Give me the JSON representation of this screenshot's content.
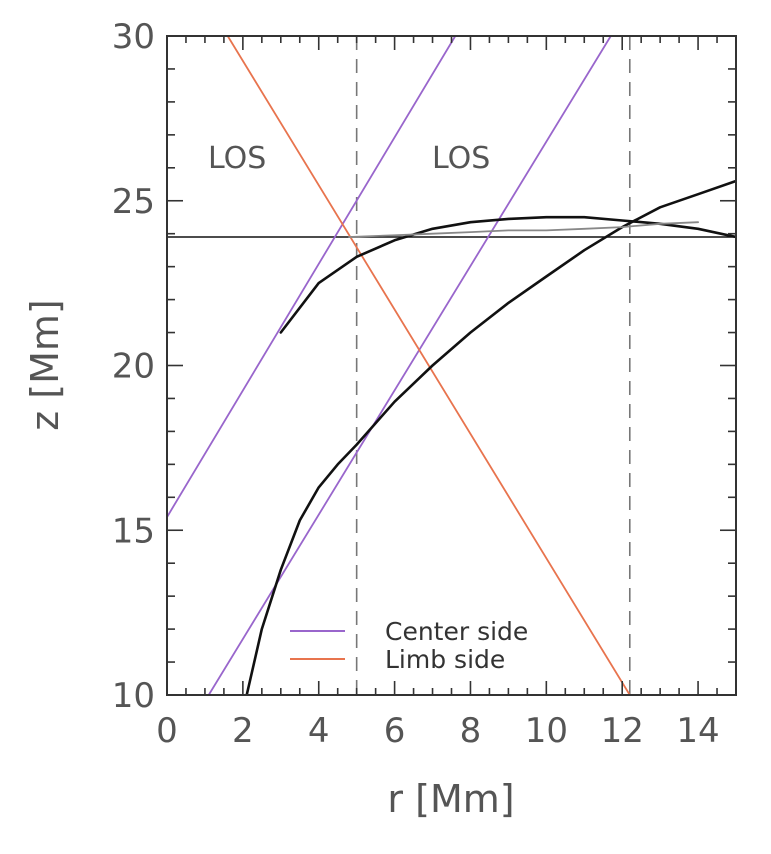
{
  "chart_data": {
    "type": "line",
    "title": "",
    "xlabel": "r [Mm]",
    "ylabel": "z [Mm]",
    "xlim": [
      0,
      15
    ],
    "ylim": [
      10,
      30
    ],
    "x_ticks": [
      0,
      2,
      4,
      6,
      8,
      10,
      12,
      14
    ],
    "x_tick_labels": [
      "0",
      "2",
      "4",
      "6",
      "8",
      "10",
      "12",
      "14"
    ],
    "y_ticks": [
      10,
      15,
      20,
      25,
      30
    ],
    "y_tick_labels": [
      "10",
      "15",
      "20",
      "25",
      "30"
    ],
    "grid": false,
    "legend_position": "bottom-center",
    "colors": {
      "center": "#9966cc",
      "limb": "#e8744e",
      "curve": "#111111",
      "gray_curve": "#888888",
      "dashed": "#777777"
    },
    "legend": [
      {
        "label": "Center side",
        "color": "#9966cc"
      },
      {
        "label": "Limb side",
        "color": "#e8744e"
      }
    ],
    "annotations": [
      {
        "text": "LOS",
        "x": 2.2,
        "y": 25.9,
        "color": "#e8744e"
      },
      {
        "text": "LOS",
        "x": 7.0,
        "y": 25.9,
        "color": "#9966cc"
      }
    ],
    "vertical_dashed_lines": [
      5.0,
      12.2
    ],
    "horizontal_line": {
      "y": 23.9,
      "x_range": [
        0,
        15
      ],
      "color": "#111111"
    },
    "series": [
      {
        "color": "#9966cc",
        "style": "solid",
        "x": [
          0,
          7.6
        ],
        "y": [
          15.4,
          30
        ]
      },
      {
        "color": "#9966cc",
        "style": "solid",
        "x": [
          1.1,
          11.7
        ],
        "y": [
          10,
          30
        ]
      },
      {
        "color": "#e8744e",
        "style": "solid",
        "x": [
          1.6,
          12.2
        ],
        "y": [
          30,
          10
        ]
      },
      {
        "color": "#111111",
        "style": "solid",
        "x": [
          3.0,
          4.0,
          5.0,
          6.0,
          7.0,
          8.0,
          9.0,
          10.0,
          11.0,
          12.0,
          13.0,
          14.0,
          15.0
        ],
        "y": [
          21.0,
          22.5,
          23.3,
          23.8,
          24.15,
          24.35,
          24.45,
          24.5,
          24.5,
          24.4,
          24.3,
          24.15,
          23.9
        ]
      },
      {
        "color": "#111111",
        "style": "solid",
        "x": [
          2.1,
          2.5,
          3.0,
          3.5,
          4.0,
          4.5,
          5.0,
          6.0,
          7.0,
          8.0,
          9.0,
          10.0,
          11.0,
          12.0,
          13.0,
          14.0,
          15.0
        ],
        "y": [
          10.0,
          12.0,
          13.8,
          15.3,
          16.3,
          17.0,
          17.6,
          18.9,
          20.0,
          21.0,
          21.9,
          22.7,
          23.5,
          24.2,
          24.8,
          25.2,
          25.6
        ]
      },
      {
        "color": "#888888",
        "style": "solid",
        "x": [
          4.8,
          6.0,
          7.0,
          8.0,
          9.0,
          10.0,
          11.0,
          12.0,
          13.0,
          14.0
        ],
        "y": [
          23.9,
          23.95,
          24.0,
          24.05,
          24.1,
          24.1,
          24.15,
          24.2,
          24.3,
          24.35
        ]
      }
    ]
  }
}
